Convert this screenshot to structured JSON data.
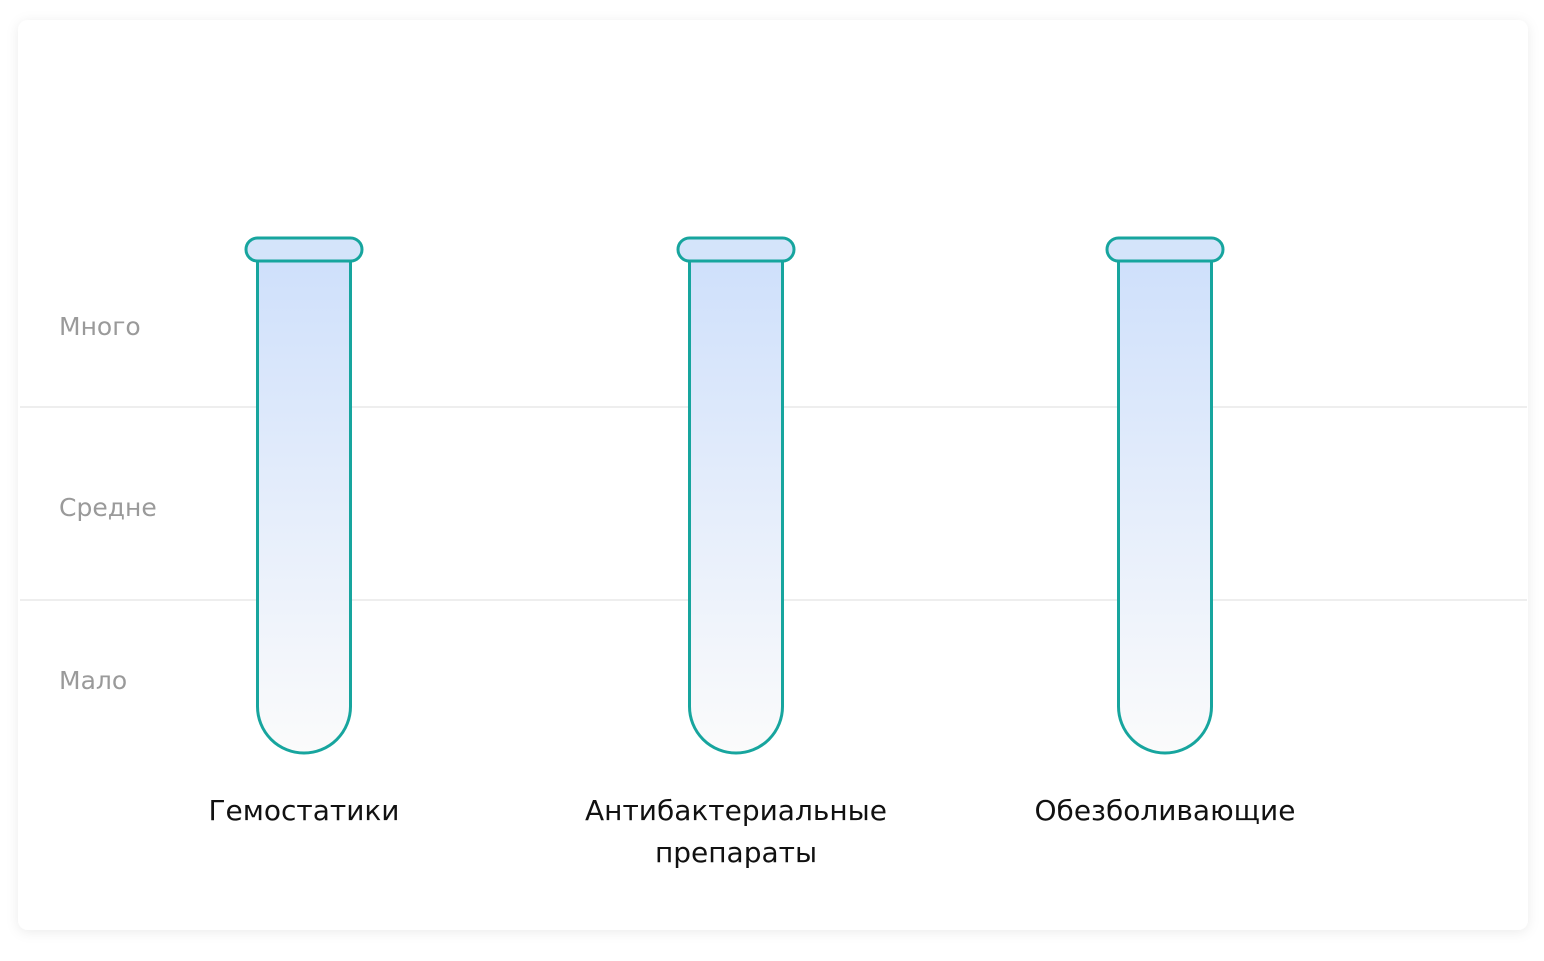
{
  "levels": [
    "Много",
    "Средне",
    "Мало"
  ],
  "tubes": [
    {
      "label_lines": [
        "Гемостатики"
      ]
    },
    {
      "label_lines": [
        "Антибактериальные",
        "препараты"
      ]
    },
    {
      "label_lines": [
        "Обезболивающие"
      ]
    }
  ]
}
